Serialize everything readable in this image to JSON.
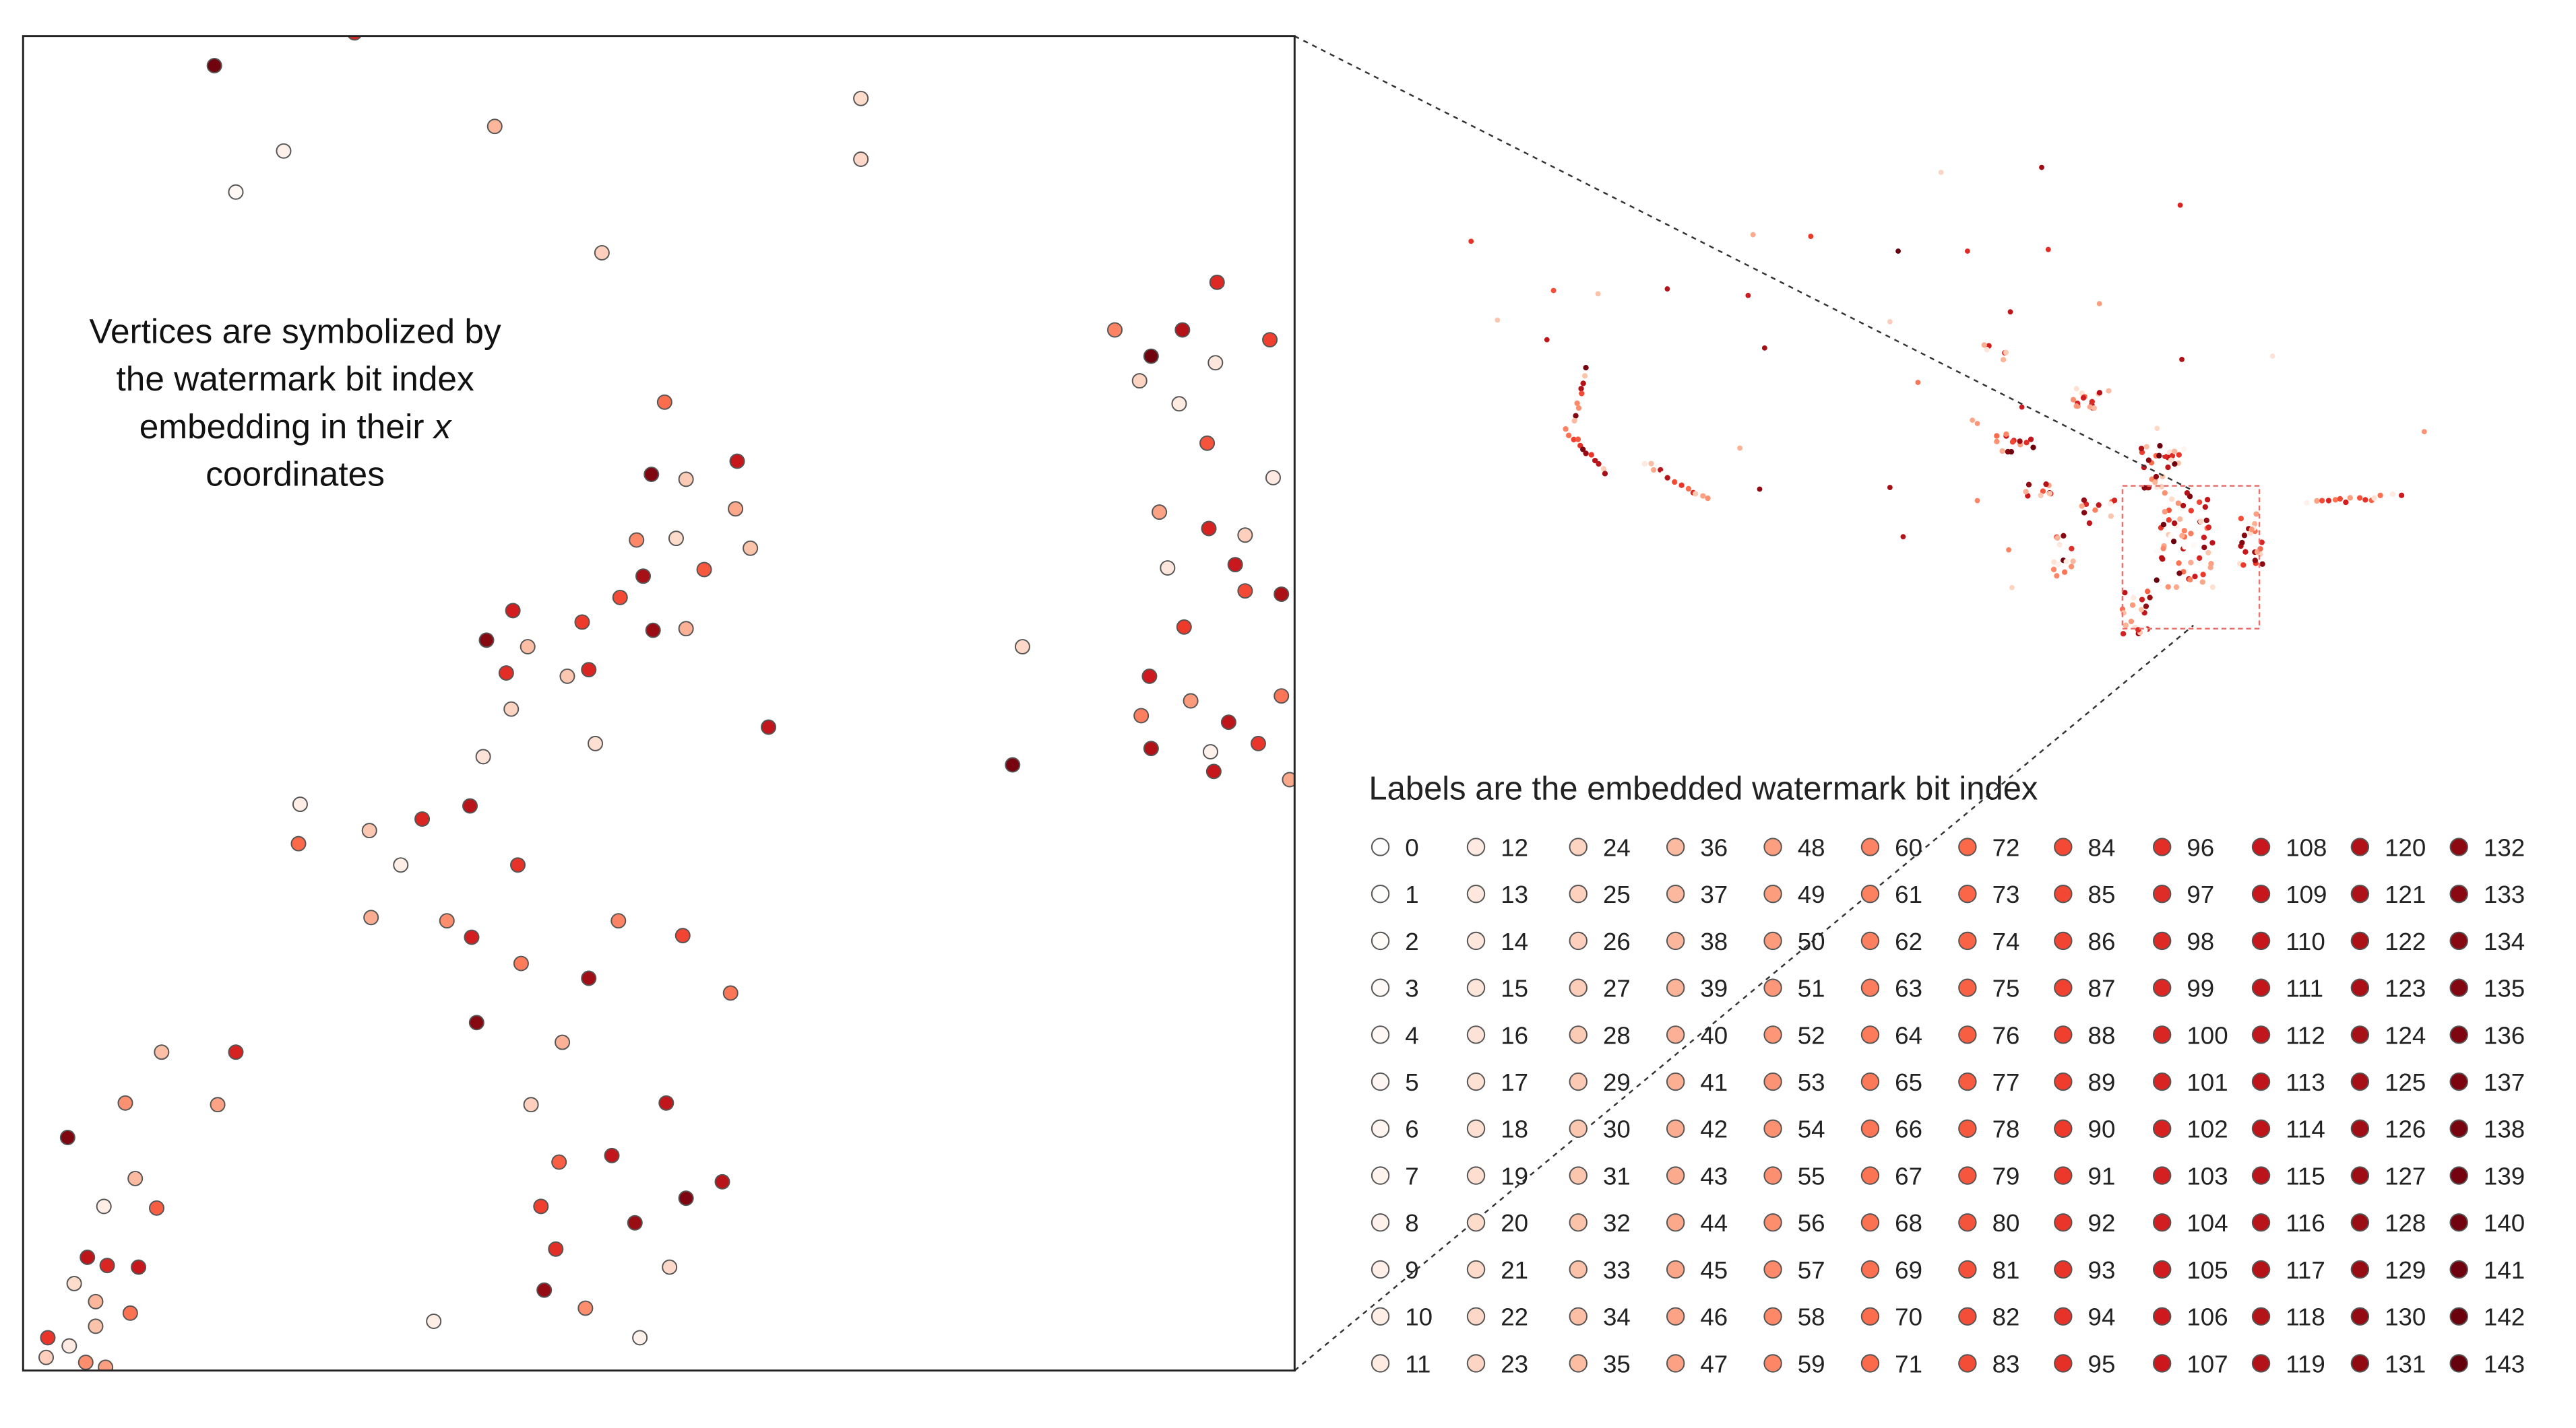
{
  "inset_caption": {
    "lines": [
      {
        "text": "Vertices are symbolized by",
        "italic": ""
      },
      {
        "text": "the watermark bit index",
        "italic": ""
      },
      {
        "text": "embedding in their ",
        "italic": "x"
      },
      {
        "text": "coordinates",
        "italic": ""
      }
    ]
  },
  "legend": {
    "title": "Labels are the embedded watermark bit index",
    "min_index": 0,
    "max_index": 143,
    "rows": 12,
    "columns": 12,
    "color_ramp": [
      "#ffffff",
      "#fde0d2",
      "#fcbba1",
      "#fc9272",
      "#fb6a4a",
      "#ef3b2c",
      "#cb181d",
      "#a50f15",
      "#67000d"
    ],
    "outline_color": "#555555"
  },
  "colors": {
    "frame": "#222222",
    "leader_line": "#333333",
    "extent_box": "#e8726e"
  },
  "inset_points": [
    [
      130,
      40,
      140
    ],
    [
      215,
      20,
      100
    ],
    [
      300,
      77,
      38
    ],
    [
      522,
      60,
      20
    ],
    [
      522,
      97,
      22
    ],
    [
      172,
      92,
      8
    ],
    [
      143,
      117,
      4
    ],
    [
      365,
      154,
      26
    ],
    [
      738,
      172,
      98
    ],
    [
      676,
      201,
      60
    ],
    [
      698,
      217,
      140
    ],
    [
      717,
      201,
      118
    ],
    [
      737,
      221,
      14
    ],
    [
      770,
      207,
      88
    ],
    [
      691,
      232,
      24
    ],
    [
      715,
      246,
      12
    ],
    [
      732,
      270,
      80
    ],
    [
      403,
      245,
      70
    ],
    [
      447,
      281,
      110
    ],
    [
      395,
      289,
      136
    ],
    [
      416,
      292,
      28
    ],
    [
      446,
      310,
      44
    ],
    [
      386,
      329,
      58
    ],
    [
      410,
      328,
      20
    ],
    [
      455,
      334,
      32
    ],
    [
      427,
      347,
      78
    ],
    [
      390,
      351,
      124
    ],
    [
      376,
      364,
      84
    ],
    [
      311,
      372,
      104
    ],
    [
      353,
      379,
      90
    ],
    [
      295,
      390,
      134
    ],
    [
      320,
      394,
      34
    ],
    [
      396,
      384,
      128
    ],
    [
      416,
      383,
      40
    ],
    [
      307,
      410,
      96
    ],
    [
      344,
      412,
      30
    ],
    [
      357,
      408,
      100
    ],
    [
      310,
      432,
      24
    ],
    [
      361,
      453,
      18
    ],
    [
      293,
      461,
      16
    ],
    [
      466,
      443,
      112
    ],
    [
      620,
      394,
      22
    ],
    [
      614,
      466,
      138
    ],
    [
      772,
      291,
      12
    ],
    [
      703,
      312,
      46
    ],
    [
      733,
      322,
      102
    ],
    [
      755,
      326,
      26
    ],
    [
      708,
      346,
      14
    ],
    [
      749,
      344,
      108
    ],
    [
      755,
      360,
      84
    ],
    [
      777,
      362,
      122
    ],
    [
      718,
      382,
      90
    ],
    [
      697,
      412,
      106
    ],
    [
      722,
      427,
      50
    ],
    [
      692,
      436,
      62
    ],
    [
      745,
      440,
      114
    ],
    [
      777,
      424,
      66
    ],
    [
      698,
      456,
      120
    ],
    [
      734,
      458,
      8
    ],
    [
      763,
      453,
      92
    ],
    [
      736,
      470,
      110
    ],
    [
      782,
      475,
      44
    ],
    [
      182,
      490,
      10
    ],
    [
      181,
      514,
      72
    ],
    [
      224,
      506,
      30
    ],
    [
      243,
      527,
      10
    ],
    [
      256,
      499,
      100
    ],
    [
      285,
      491,
      116
    ],
    [
      314,
      527,
      94
    ],
    [
      225,
      559,
      42
    ],
    [
      271,
      561,
      56
    ],
    [
      286,
      571,
      104
    ],
    [
      316,
      587,
      64
    ],
    [
      357,
      596,
      126
    ],
    [
      375,
      561,
      60
    ],
    [
      414,
      570,
      86
    ],
    [
      443,
      605,
      66
    ],
    [
      289,
      623,
      134
    ],
    [
      341,
      635,
      40
    ],
    [
      98,
      641,
      34
    ],
    [
      143,
      641,
      102
    ],
    [
      76,
      672,
      54
    ],
    [
      132,
      673,
      46
    ],
    [
      41,
      693,
      136
    ],
    [
      322,
      673,
      26
    ],
    [
      404,
      672,
      112
    ],
    [
      82,
      718,
      36
    ],
    [
      63,
      735,
      10
    ],
    [
      95,
      736,
      76
    ],
    [
      339,
      708,
      76
    ],
    [
      371,
      704,
      112
    ],
    [
      438,
      720,
      116
    ],
    [
      416,
      730,
      136
    ],
    [
      328,
      735,
      88
    ],
    [
      385,
      745,
      128
    ],
    [
      53,
      766,
      114
    ],
    [
      65,
      771,
      100
    ],
    [
      84,
      772,
      110
    ],
    [
      337,
      761,
      96
    ],
    [
      406,
      772,
      22
    ],
    [
      45,
      782,
      20
    ],
    [
      58,
      793,
      38
    ],
    [
      79,
      800,
      68
    ],
    [
      330,
      786,
      130
    ],
    [
      355,
      797,
      56
    ],
    [
      263,
      805,
      10
    ],
    [
      388,
      815,
      8
    ],
    [
      29,
      815,
      92
    ],
    [
      42,
      820,
      12
    ],
    [
      58,
      808,
      32
    ],
    [
      28,
      827,
      26
    ],
    [
      52,
      830,
      56
    ],
    [
      64,
      833,
      48
    ]
  ]
}
